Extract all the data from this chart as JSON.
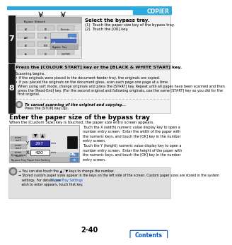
{
  "bg_color": "#ffffff",
  "header_bar_color": "#29abe2",
  "header_dark_bar": "#1a7aaa",
  "header_text": "COPIER",
  "header_text_color": "#ffffff",
  "step7_label": "7",
  "step7_title": "Select the bypass tray.",
  "step7_item1": "(1)  Touch the paper size key of the bypass tray.",
  "step7_item2": "(2)  Touch the [OK] key.",
  "step8_label": "8",
  "step8_title": "Press the [COLOUR START] key or the [BLACK & WHITE START] key.",
  "step8_line1": "Scanning begins.",
  "step8_line2": "• If the originals were placed in the document feeder tray, the originals are copied.",
  "step8_line3": "• If you placed the originals on the document glass, scan each page one page at a time.",
  "step8_line4": "  When using sort mode, change originals and press the [START] key. Repeat until all pages have been scanned and then",
  "step8_line5": "  press the [Read-End] key. (For the second original and following originals, use the same [START] key as you did for the",
  "step8_line6": "  first original.",
  "step8_note_title": "To cancel scanning of the original and copying...",
  "step8_note_body": "Press the [STOP] key (Ⓢ).",
  "section_title": "Enter the paper size of the bypass tray",
  "section_intro": "When the [Custom Size] key is touched, the paper size entry screen appears.",
  "section_text1": "Touch the X (width) numeric value display key to open a",
  "section_text2": "number entry screen.  Enter the width of the paper with",
  "section_text3": "the numeric keys, and touch the [OK] key in the number",
  "section_text4": "entry screen.",
  "section_text5": "Touch the Y (height) numeric value display key to open a",
  "section_text6": "number entry screen.  Enter the height of the paper with",
  "section_text7": "the numeric keys, and touch the [OK] key in the number",
  "section_text8": "entry screen.",
  "note1": "→ You can also touch the ▲ / ▼ keys to change the number.",
  "note2a": "→ Stored custom paper sizes appear in the keys on the left side of the screen. Custom paper sizes are stored in the system",
  "note2b": "   settings. For details, see “Paper Tray Settings” (page 7-13) in “7. SYSTEM SETTINGS”. If the key for the size that you",
  "note2c": "   wish to enter appears, touch that key.",
  "note_link": "Paper Tray Settings",
  "page_number": "2-40",
  "contents_btn_text": "Contents",
  "step_label_bg": "#1a1a1a",
  "step_label_color": "#ffffff",
  "note_bg": "#e0e0e0",
  "note_link_color": "#0055cc",
  "contents_btn_color": "#0055cc",
  "contents_btn_border": "#0055cc"
}
